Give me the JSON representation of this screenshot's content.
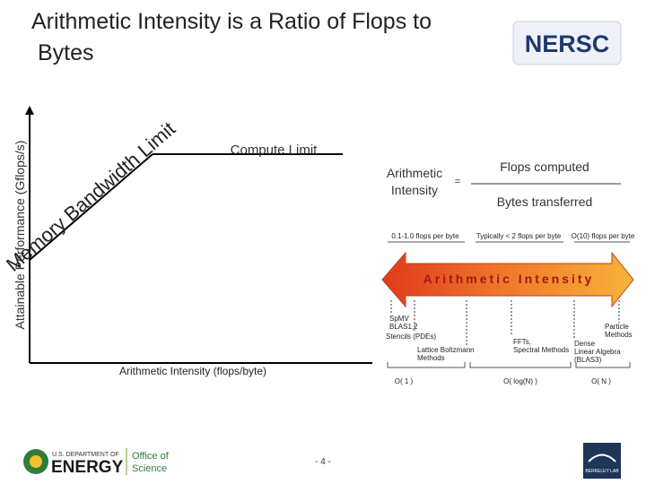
{
  "header": {
    "title_lines": [
      "Arithmetic Intensity is a Ratio of Flops to",
      "Bytes"
    ],
    "logo": "NERSC"
  },
  "roofline": {
    "y_axis_label": "Attainable Performance (Gflops/s)",
    "x_axis_label": "Arithmetic Intensity (flops/byte)",
    "memory_limit": "Memory Bandwidth Limit",
    "compute_limit": "Compute Limit"
  },
  "formula": {
    "term_lines": [
      "Arithmetic",
      "Intensity"
    ],
    "equals": "=",
    "numerator": "Flops computed",
    "denominator": "Bytes transferred"
  },
  "spectrum": {
    "ranges": [
      "0.1-1.0 flops per byte",
      "Typically < 2 flops per byte",
      "O(10) flops per byte"
    ],
    "arrow_label": "Arithmetic Intensity",
    "kernels": [
      [
        "SpMV",
        "BLAS1,2"
      ],
      [
        "Stencils (PDEs)"
      ],
      [
        "Lattice Boltzmann",
        "Methods"
      ],
      [
        "FFTs,",
        "Spectral Methods"
      ],
      [
        "Dense",
        "Linear Algebra",
        "(BLAS3)"
      ],
      [
        "Particle",
        "Methods"
      ]
    ],
    "orders": [
      "O( 1 )",
      "O( log(N) )",
      "O( N )"
    ]
  },
  "footer": {
    "doe_top": "U.S. DEPARTMENT OF",
    "doe_main": "ENERGY",
    "office_lines": [
      "Office of",
      "Science"
    ],
    "page": "- 4 -",
    "lab": "BERKELEY LAB"
  }
}
